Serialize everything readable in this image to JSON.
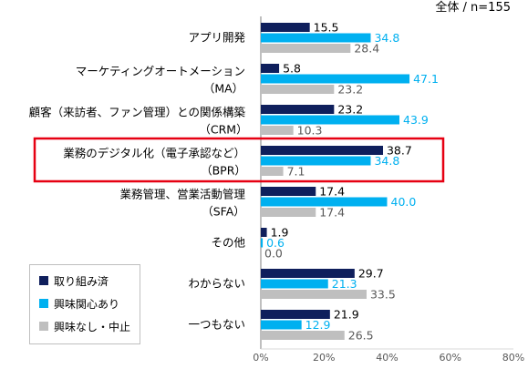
{
  "chart_data": {
    "type": "bar",
    "orientation": "horizontal",
    "subtitle": "全体 / n=155",
    "categories": [
      {
        "line1": "アプリ開発",
        "line2": ""
      },
      {
        "line1": "マーケティングオートメーション",
        "line2": "（MA）"
      },
      {
        "line1": "顧客（来訪者、ファン管理）との関係構築",
        "line2": "（CRM）"
      },
      {
        "line1": "業務のデジタル化（電子承認など）",
        "line2": "（BPR）"
      },
      {
        "line1": "業務管理、営業活動管理",
        "line2": "（SFA）"
      },
      {
        "line1": "その他",
        "line2": ""
      },
      {
        "line1": "わからない",
        "line2": ""
      },
      {
        "line1": "一つもない",
        "line2": ""
      }
    ],
    "series": [
      {
        "name": "取り組み済",
        "color": "#0f1f5c",
        "label_color": "#000000",
        "values": [
          15.5,
          5.8,
          23.2,
          38.7,
          17.4,
          1.9,
          29.7,
          21.9
        ]
      },
      {
        "name": "興味関心あり",
        "color": "#00b0f0",
        "label_color": "#00b0f0",
        "values": [
          34.8,
          47.1,
          43.9,
          34.8,
          40.0,
          0.6,
          21.3,
          12.9
        ]
      },
      {
        "name": "興味なし・中止",
        "color": "#bfbfbf",
        "label_color": "#595959",
        "values": [
          28.4,
          23.2,
          10.3,
          7.1,
          17.4,
          0.0,
          33.5,
          26.5
        ]
      }
    ],
    "value_labels": [
      [
        "15.5",
        "34.8",
        "28.4"
      ],
      [
        "5.8",
        "47.1",
        "23.2"
      ],
      [
        "23.2",
        "43.9",
        "10.3"
      ],
      [
        "38.7",
        "34.8",
        "7.1"
      ],
      [
        "17.4",
        "40.0",
        "17.4"
      ],
      [
        "1.9",
        "0.6",
        "0.0"
      ],
      [
        "29.7",
        "21.3",
        "33.5"
      ],
      [
        "21.9",
        "12.9",
        "26.5"
      ]
    ],
    "x_ticks": [
      "0%",
      "20%",
      "40%",
      "60%",
      "80%"
    ],
    "xlim": [
      0,
      80
    ],
    "highlight_category_index": 3,
    "highlight_color": "#e60012",
    "legend_position": "bottom-left",
    "grid": false
  }
}
